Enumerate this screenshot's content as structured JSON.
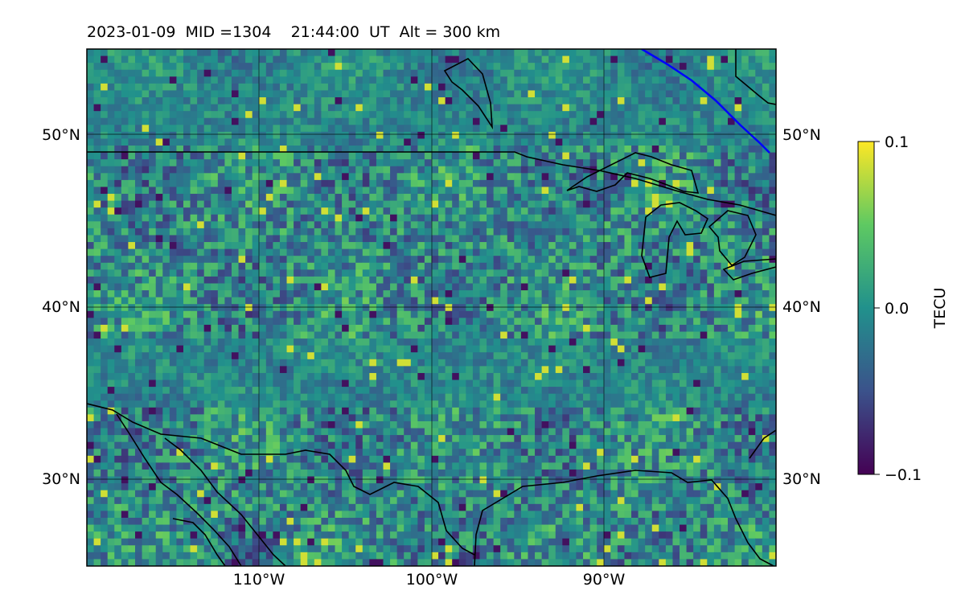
{
  "map": {
    "title": "2023-01-09  MID =1304    21:44:00  UT  Alt = 300 km",
    "lat_labels": [
      "50°N",
      "40°N",
      "30°N"
    ],
    "lat_values": [
      50,
      40,
      30
    ],
    "lon_labels": [
      "110°W",
      "100°W",
      "90°W"
    ],
    "lon_values": [
      -110,
      -100,
      -90
    ],
    "extent": {
      "lon_min": -120,
      "lon_max": -80,
      "lat_min": 25,
      "lat_max": 55
    },
    "grid": true,
    "basemap_lines": [
      "coastlines",
      "national borders"
    ],
    "terminator_color": "#0000ff",
    "colormap": "viridis"
  },
  "colorbar": {
    "label": "TECU",
    "min": -0.1,
    "max": 0.1,
    "ticks": [
      "0.1",
      "0.0",
      "−0.1"
    ]
  }
}
